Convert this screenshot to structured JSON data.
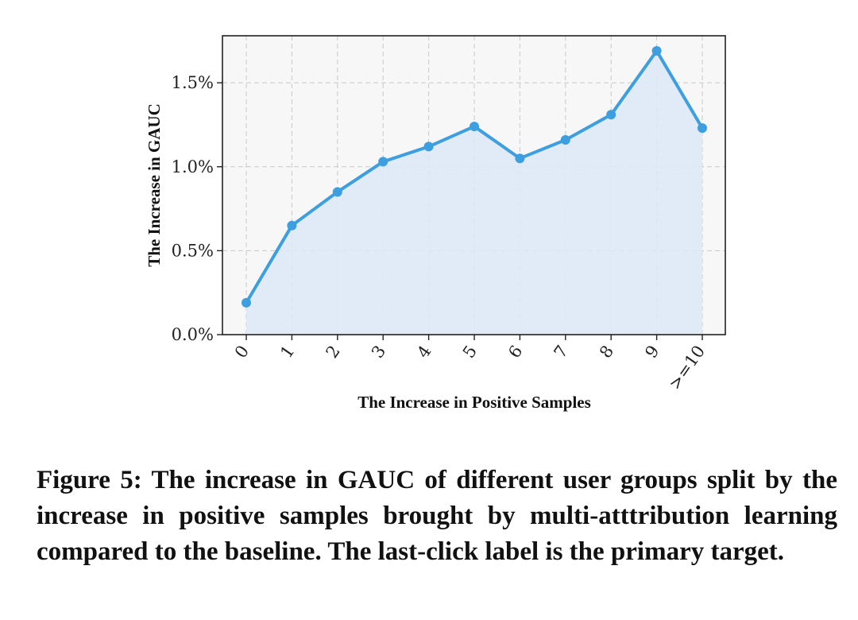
{
  "chart_data": {
    "type": "line",
    "categories": [
      "0",
      "1",
      "2",
      "3",
      "4",
      "5",
      "6",
      "7",
      "8",
      "9",
      ">=10"
    ],
    "values": [
      0.19,
      0.65,
      0.85,
      1.03,
      1.12,
      1.24,
      1.05,
      1.16,
      1.31,
      1.69,
      1.23
    ],
    "xlabel": "The Increase in Positive Samples",
    "ylabel": "The Increase in GAUC",
    "yticks": [
      "0.0%",
      "0.5%",
      "1.0%",
      "1.5%"
    ],
    "ytick_values": [
      0.0,
      0.5,
      1.0,
      1.5
    ],
    "ylim": [
      0.0,
      1.78
    ],
    "grid": true,
    "area_fill": true,
    "line_color": "#3d9ee0",
    "fill_color": "#dde9f6",
    "plot_background": "#f7f7f7"
  },
  "caption": "Figure 5: The increase in GAUC of different user groups split by the increase in positive samples brought by multi-atttribution learning compared to the baseline. The last-click label is the primary target."
}
